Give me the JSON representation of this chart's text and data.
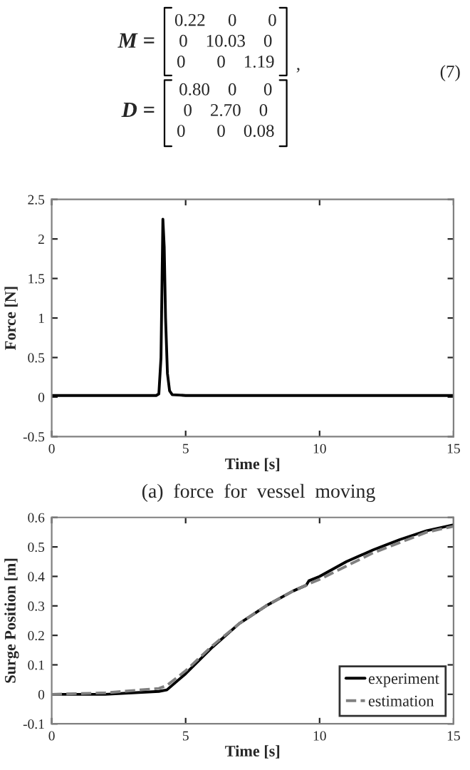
{
  "chart_data": [
    {
      "type": "line",
      "xlabel": "Time [s]",
      "ylabel": "Force [N]",
      "annotations": [
        "M =",
        "0.22     0       0",
        "0    10.03    0",
        "0       0    1.19",
        ",",
        "(7)",
        "D =",
        "0.80    0      0",
        "0    2.70    0",
        "0       0    0.08",
        "(a)  force  for  vessel  moving"
      ],
      "x": [
        0,
        3.9,
        4.0,
        4.08,
        4.12,
        4.15,
        4.2,
        4.25,
        4.32,
        4.4,
        4.5,
        5,
        15
      ],
      "series": [
        {
          "color": "#000000",
          "values": [
            0.02,
            0.02,
            0.04,
            0.5,
            1.5,
            2.25,
            1.9,
            1.0,
            0.3,
            0.08,
            0.03,
            0.02,
            0.02
          ]
        }
      ],
      "xlim": [
        0,
        15
      ],
      "ylim": [
        -0.5,
        2.5
      ],
      "xticks": [
        0,
        5,
        10,
        15
      ],
      "yticks": [
        -0.5,
        0,
        0.5,
        1,
        1.5,
        2,
        2.5
      ],
      "grid": false,
      "legend": false,
      "line_style": "solid"
    },
    {
      "type": "line",
      "xlabel": "Time [s]",
      "ylabel": "Surge Position [m]",
      "x": [
        0,
        2,
        4,
        4.3,
        5,
        6,
        7,
        8,
        9,
        9.5,
        9.6,
        10,
        11,
        12,
        13,
        14,
        15
      ],
      "series": [
        {
          "name": "experiment",
          "color": "#000000",
          "line_style": "solid",
          "values": [
            0,
            0,
            0.01,
            0.015,
            0.07,
            0.16,
            0.24,
            0.3,
            0.35,
            0.37,
            0.385,
            0.4,
            0.45,
            0.49,
            0.525,
            0.555,
            0.575
          ]
        },
        {
          "name": "estimation",
          "color": "#808080",
          "line_style": "dashed",
          "values": [
            0,
            0.005,
            0.02,
            0.03,
            0.08,
            0.165,
            0.24,
            0.3,
            0.35,
            0.37,
            0.375,
            0.39,
            0.435,
            0.48,
            0.515,
            0.55,
            0.57
          ]
        }
      ],
      "xlim": [
        0,
        15
      ],
      "ylim": [
        -0.1,
        0.6
      ],
      "xticks": [
        0,
        5,
        10,
        15
      ],
      "yticks": [
        -0.1,
        0,
        0.1,
        0.2,
        0.3,
        0.4,
        0.5,
        0.6
      ],
      "grid": false,
      "legend": "bottom right"
    }
  ]
}
